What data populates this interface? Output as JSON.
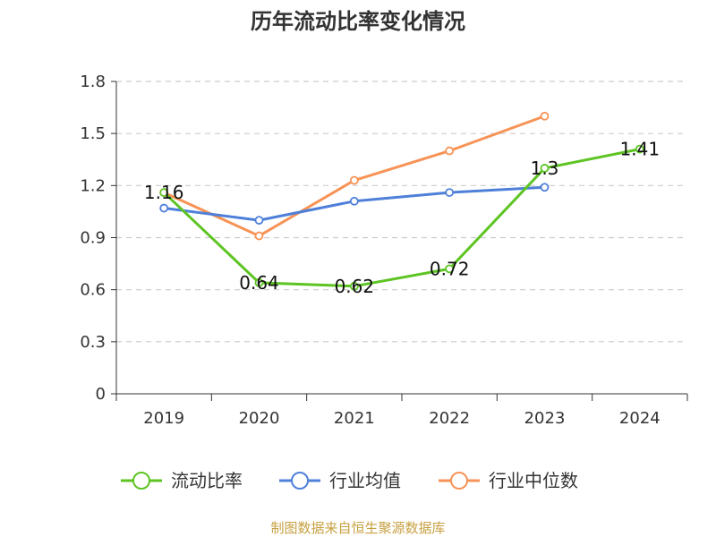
{
  "chart_data": {
    "type": "line",
    "title": "历年流动比率变化情况",
    "categories": [
      "2019",
      "2020",
      "2021",
      "2022",
      "2023",
      "2024"
    ],
    "ylim": [
      0,
      1.8
    ],
    "yticks": [
      "0",
      "0.3",
      "0.6",
      "0.9",
      "1.2",
      "1.5",
      "1.8"
    ],
    "grid": true,
    "legend_position": "bottom",
    "series": [
      {
        "name": "流动比率",
        "color": "#5ec423",
        "values": [
          1.16,
          0.64,
          0.62,
          0.72,
          1.3,
          1.41
        ],
        "labels": [
          "1.16",
          "0.64",
          "0.62",
          "0.72",
          "1.3",
          "1.41"
        ]
      },
      {
        "name": "行业均值",
        "color": "#4f80d9",
        "values": [
          1.07,
          1.0,
          1.11,
          1.16,
          1.19,
          null
        ]
      },
      {
        "name": "行业中位数",
        "color": "#f79356",
        "values": [
          1.16,
          0.91,
          1.23,
          1.4,
          1.6,
          null
        ]
      }
    ],
    "source": "制图数据来自恒生聚源数据库"
  }
}
